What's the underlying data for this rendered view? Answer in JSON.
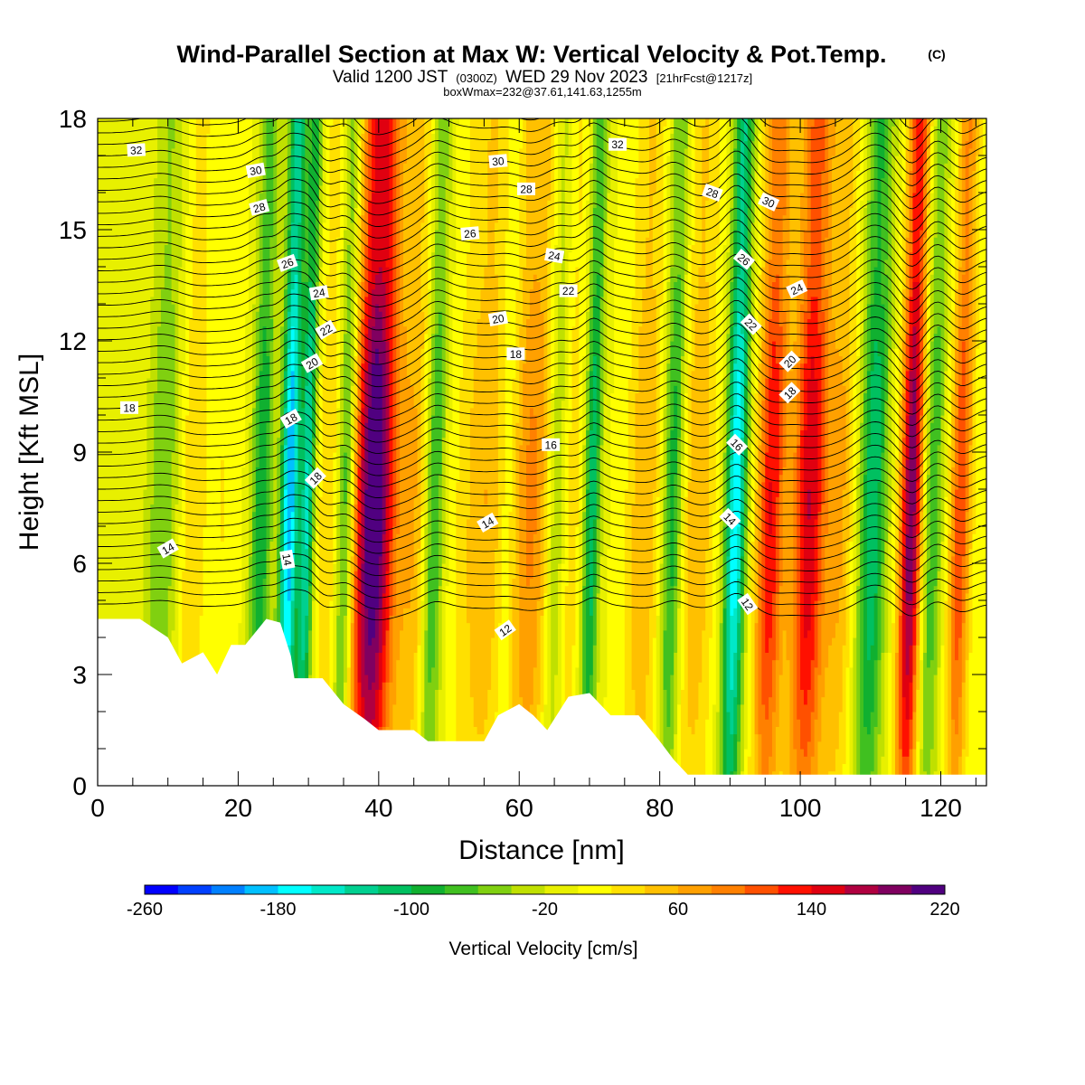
{
  "chart_data": {
    "type": "heatmap",
    "title": "Wind-Parallel Section at Max W: Vertical Velocity & Pot.Temp.",
    "title_mark": "(C)",
    "subtitle": {
      "valid": "Valid 1200 JST",
      "utc": "(0300Z)",
      "date": "WED 29 Nov 2023",
      "fcst": "[21hrFcst@1217z]"
    },
    "box_info": "boxWmax=232@37.61,141.63,1255m",
    "xlabel": "Distance [nm]",
    "ylabel": "Height [Kft MSL]",
    "xlim": [
      0,
      126.5
    ],
    "ylim": [
      0,
      18
    ],
    "x_ticks": [
      0,
      20,
      40,
      60,
      80,
      100,
      120
    ],
    "y_ticks": [
      0,
      3,
      6,
      9,
      12,
      15,
      18
    ],
    "colorbar": {
      "label": "Vertical Velocity [cm/s]",
      "min": -260,
      "max": 240,
      "step": 20,
      "tick_values": [
        "-260",
        "-180",
        "-100",
        "-20",
        "60",
        "140",
        "220"
      ],
      "colors": [
        "#0000ff",
        "#0040ff",
        "#0080ff",
        "#00c0ff",
        "#00ffff",
        "#00e8c8",
        "#00d090",
        "#00c060",
        "#10b030",
        "#40c020",
        "#80d010",
        "#c0e000",
        "#e8f000",
        "#ffff00",
        "#ffe000",
        "#ffc000",
        "#ffa000",
        "#ff8000",
        "#ff5000",
        "#ff1000",
        "#e00010",
        "#b00040",
        "#800060",
        "#500080"
      ]
    },
    "updraft_columns": [
      {
        "x": 13.5,
        "peak": 40,
        "width": 2.0
      },
      {
        "x": 18.0,
        "peak": 20,
        "width": 2.2
      },
      {
        "x": 33.0,
        "peak": 40,
        "width": 1.5
      },
      {
        "x": 39.5,
        "peak": 232,
        "width": 3.0
      },
      {
        "x": 45.5,
        "peak": 60,
        "width": 2.5
      },
      {
        "x": 55.5,
        "peak": 60,
        "width": 4.0
      },
      {
        "x": 62.0,
        "peak": 80,
        "width": 3.0
      },
      {
        "x": 67.0,
        "peak": 40,
        "width": 2.5
      },
      {
        "x": 78.0,
        "peak": 60,
        "width": 2.5
      },
      {
        "x": 85.5,
        "peak": 60,
        "width": 2.5
      },
      {
        "x": 96.0,
        "peak": 140,
        "width": 2.0
      },
      {
        "x": 101.5,
        "peak": 160,
        "width": 2.5
      },
      {
        "x": 106.0,
        "peak": 60,
        "width": 2.0
      },
      {
        "x": 116.0,
        "peak": 200,
        "width": 1.6
      },
      {
        "x": 123.0,
        "peak": 120,
        "width": 1.5
      }
    ],
    "downdraft_columns": [
      {
        "x": 9.5,
        "peak": -60,
        "width": 2.5
      },
      {
        "x": 23.5,
        "peak": -100,
        "width": 1.5
      },
      {
        "x": 27.5,
        "peak": -200,
        "width": 1.3
      },
      {
        "x": 30.0,
        "peak": -140,
        "width": 1.0
      },
      {
        "x": 35.5,
        "peak": -100,
        "width": 1.3
      },
      {
        "x": 48.0,
        "peak": -100,
        "width": 1.5
      },
      {
        "x": 58.5,
        "peak": -40,
        "width": 1.5
      },
      {
        "x": 65.5,
        "peak": -80,
        "width": 1.5
      },
      {
        "x": 70.5,
        "peak": -120,
        "width": 1.2
      },
      {
        "x": 82.0,
        "peak": -100,
        "width": 1.5
      },
      {
        "x": 91.0,
        "peak": -180,
        "width": 1.5
      },
      {
        "x": 110.5,
        "peak": -120,
        "width": 2.0
      },
      {
        "x": 119.0,
        "peak": -80,
        "width": 1.5
      }
    ],
    "terrain": [
      [
        0,
        4.5
      ],
      [
        6,
        4.5
      ],
      [
        10,
        4.0
      ],
      [
        12,
        3.3
      ],
      [
        15,
        3.6
      ],
      [
        17,
        3.0
      ],
      [
        19,
        3.8
      ],
      [
        21,
        3.8
      ],
      [
        24,
        4.5
      ],
      [
        26,
        4.4
      ],
      [
        27.5,
        3.5
      ],
      [
        28,
        2.9
      ],
      [
        32,
        2.9
      ],
      [
        35,
        2.2
      ],
      [
        38,
        1.8
      ],
      [
        40,
        1.5
      ],
      [
        45,
        1.5
      ],
      [
        47,
        1.2
      ],
      [
        55,
        1.2
      ],
      [
        57,
        1.9
      ],
      [
        60,
        2.2
      ],
      [
        62,
        1.9
      ],
      [
        64,
        1.5
      ],
      [
        67,
        2.4
      ],
      [
        70,
        2.5
      ],
      [
        73,
        1.9
      ],
      [
        77,
        1.9
      ],
      [
        80,
        1.2
      ],
      [
        82,
        0.7
      ],
      [
        84,
        0.3
      ],
      [
        126.5,
        0.3
      ]
    ],
    "contour_labels": [
      {
        "value": "32",
        "x": 5.5,
        "y": 17.15,
        "angle": -3
      },
      {
        "value": "30",
        "x": 22.5,
        "y": 16.6,
        "angle": -10
      },
      {
        "value": "28",
        "x": 23.0,
        "y": 15.6,
        "angle": -15
      },
      {
        "value": "26",
        "x": 27.0,
        "y": 14.1,
        "angle": -20
      },
      {
        "value": "24",
        "x": 31.5,
        "y": 13.3,
        "angle": -10
      },
      {
        "value": "22",
        "x": 32.5,
        "y": 12.3,
        "angle": -30
      },
      {
        "value": "20",
        "x": 30.5,
        "y": 11.4,
        "angle": -30
      },
      {
        "value": "18",
        "x": 27.5,
        "y": 9.9,
        "angle": -30
      },
      {
        "value": "18",
        "x": 31.0,
        "y": 8.3,
        "angle": -45
      },
      {
        "value": "14",
        "x": 27.0,
        "y": 6.1,
        "angle": 80
      },
      {
        "value": "18",
        "x": 4.5,
        "y": 10.2,
        "angle": 0
      },
      {
        "value": "14",
        "x": 10.0,
        "y": 6.4,
        "angle": -30
      },
      {
        "value": "30",
        "x": 57.0,
        "y": 16.85,
        "angle": -5
      },
      {
        "value": "28",
        "x": 61.0,
        "y": 16.1,
        "angle": 0
      },
      {
        "value": "26",
        "x": 53.0,
        "y": 14.9,
        "angle": -5
      },
      {
        "value": "24",
        "x": 65.0,
        "y": 14.3,
        "angle": 10
      },
      {
        "value": "22",
        "x": 67.0,
        "y": 13.35,
        "angle": 0
      },
      {
        "value": "20",
        "x": 57.0,
        "y": 12.6,
        "angle": -10
      },
      {
        "value": "18",
        "x": 59.5,
        "y": 11.65,
        "angle": 0
      },
      {
        "value": "16",
        "x": 64.5,
        "y": 9.2,
        "angle": 0
      },
      {
        "value": "14",
        "x": 55.5,
        "y": 7.1,
        "angle": -30
      },
      {
        "value": "12",
        "x": 58.0,
        "y": 4.2,
        "angle": -35
      },
      {
        "value": "32",
        "x": 74.0,
        "y": 17.3,
        "angle": 0
      },
      {
        "value": "28",
        "x": 87.5,
        "y": 16.0,
        "angle": 20
      },
      {
        "value": "30",
        "x": 95.5,
        "y": 15.75,
        "angle": 25
      },
      {
        "value": "26",
        "x": 92.0,
        "y": 14.2,
        "angle": 40
      },
      {
        "value": "24",
        "x": 99.5,
        "y": 13.4,
        "angle": -25
      },
      {
        "value": "22",
        "x": 93.0,
        "y": 12.45,
        "angle": 45
      },
      {
        "value": "20",
        "x": 98.5,
        "y": 11.45,
        "angle": -45
      },
      {
        "value": "18",
        "x": 98.5,
        "y": 10.6,
        "angle": -45
      },
      {
        "value": "16",
        "x": 91.0,
        "y": 9.2,
        "angle": 45
      },
      {
        "value": "14",
        "x": 90.0,
        "y": 7.2,
        "angle": 45
      },
      {
        "value": "12",
        "x": 92.5,
        "y": 4.9,
        "angle": 55
      }
    ]
  }
}
